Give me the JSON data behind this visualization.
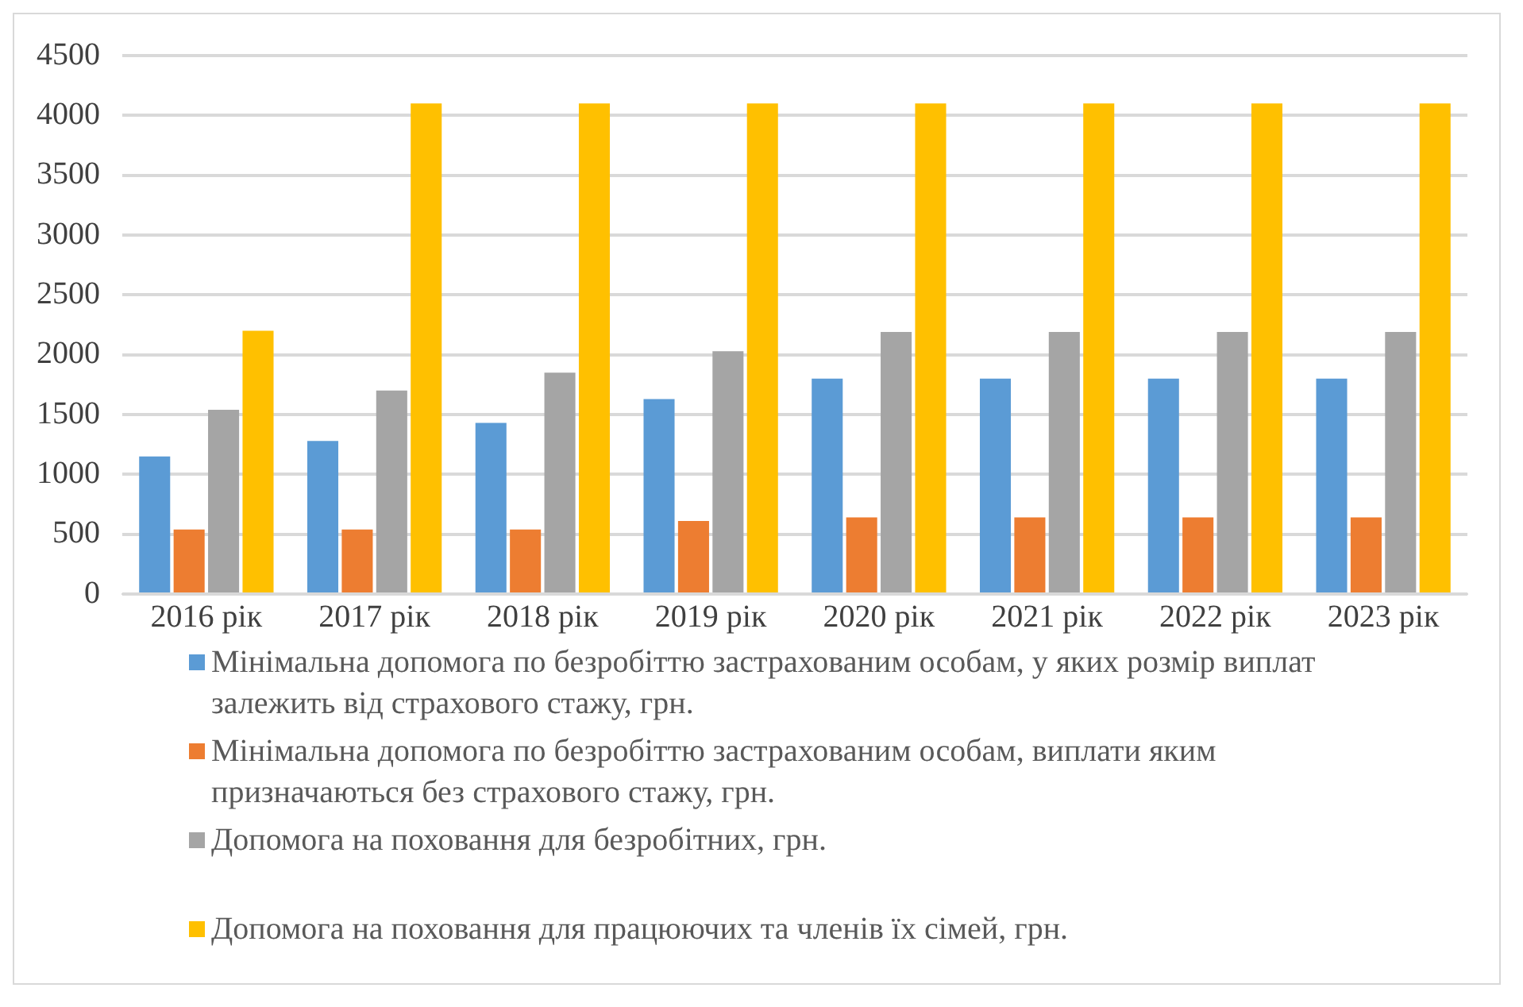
{
  "chart_data": {
    "type": "bar",
    "categories": [
      "2016 рік",
      "2017 рік",
      "2018 рік",
      "2019 рік",
      "2020 рік",
      "2021 рік",
      "2022 рік",
      "2023 рік"
    ],
    "series": [
      {
        "name": "Мінімальна допомога по безробіттю застрахованим особам, у яких розмір виплат залежить від страхового стажу, грн.",
        "color": "#5b9bd5",
        "values": [
          1150,
          1280,
          1430,
          1630,
          1800,
          1800,
          1800,
          1800
        ]
      },
      {
        "name": "Мінімальна допомога по безробіттю застрахованим особам, виплати яким призначаються без страхового стажу, грн.",
        "color": "#ed7d31",
        "values": [
          540,
          540,
          540,
          610,
          640,
          640,
          640,
          640
        ]
      },
      {
        "name": "Допомога на поховання для безробітних, грн.",
        "color": "#a5a5a5",
        "values": [
          1540,
          1700,
          1850,
          2030,
          2190,
          2190,
          2190,
          2190
        ]
      },
      {
        "name": "Допомога на поховання для працюючих та членів їх сімей, грн.",
        "color": "#ffc000",
        "values": [
          2200,
          4100,
          4100,
          4100,
          4100,
          4100,
          4100,
          4100
        ]
      }
    ],
    "ylim": [
      0,
      4500
    ],
    "yticks": [
      0,
      500,
      1000,
      1500,
      2000,
      2500,
      3000,
      3500,
      4000,
      4500
    ],
    "grid": "y",
    "legend": "bottom"
  }
}
